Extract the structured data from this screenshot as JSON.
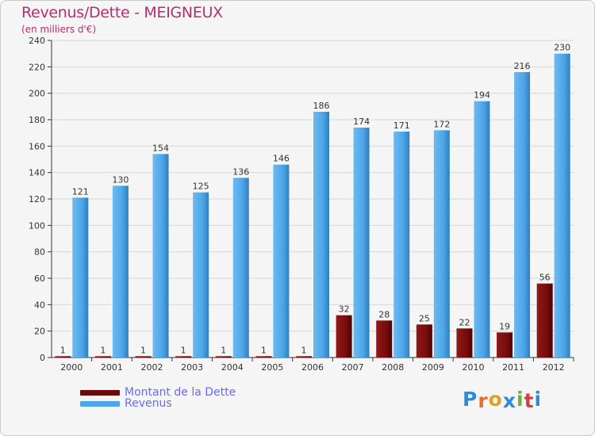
{
  "colors": {
    "dette": "#7a0c0c",
    "revenus": "#4da6e8",
    "title": "#b03070",
    "legend_text": "#6a6aee"
  },
  "chart_data": {
    "type": "bar",
    "title": "Revenus/Dette - MEIGNEUX",
    "subtitle": "(en milliers d'€)",
    "xlabel": "",
    "ylabel": "",
    "ylim": [
      0,
      240
    ],
    "yticks": [
      "0",
      "20",
      "40",
      "60",
      "80",
      "100",
      "120",
      "140",
      "160",
      "180",
      "200",
      "220",
      "240"
    ],
    "grid": true,
    "legend_position": "bottom-left",
    "categories": [
      "2000",
      "2001",
      "2002",
      "2003",
      "2004",
      "2005",
      "2006",
      "2007",
      "2008",
      "2009",
      "2010",
      "2011",
      "2012"
    ],
    "series": [
      {
        "name": "Montant de la Dette",
        "values": [
          1,
          1,
          1,
          1,
          1,
          1,
          1,
          32,
          28,
          25,
          22,
          19,
          56
        ]
      },
      {
        "name": "Revenus",
        "values": [
          121,
          130,
          154,
          125,
          136,
          146,
          186,
          174,
          171,
          172,
          194,
          216,
          230
        ]
      }
    ]
  },
  "logo": {
    "letters": [
      "P",
      "r",
      "o",
      "x",
      "i",
      "t",
      "i"
    ],
    "letter_colors": [
      "#2a8ed6",
      "#e0702a",
      "#e0a020",
      "#2a8ed6",
      "#70b030",
      "#d04040",
      "#2a8ed6"
    ]
  }
}
